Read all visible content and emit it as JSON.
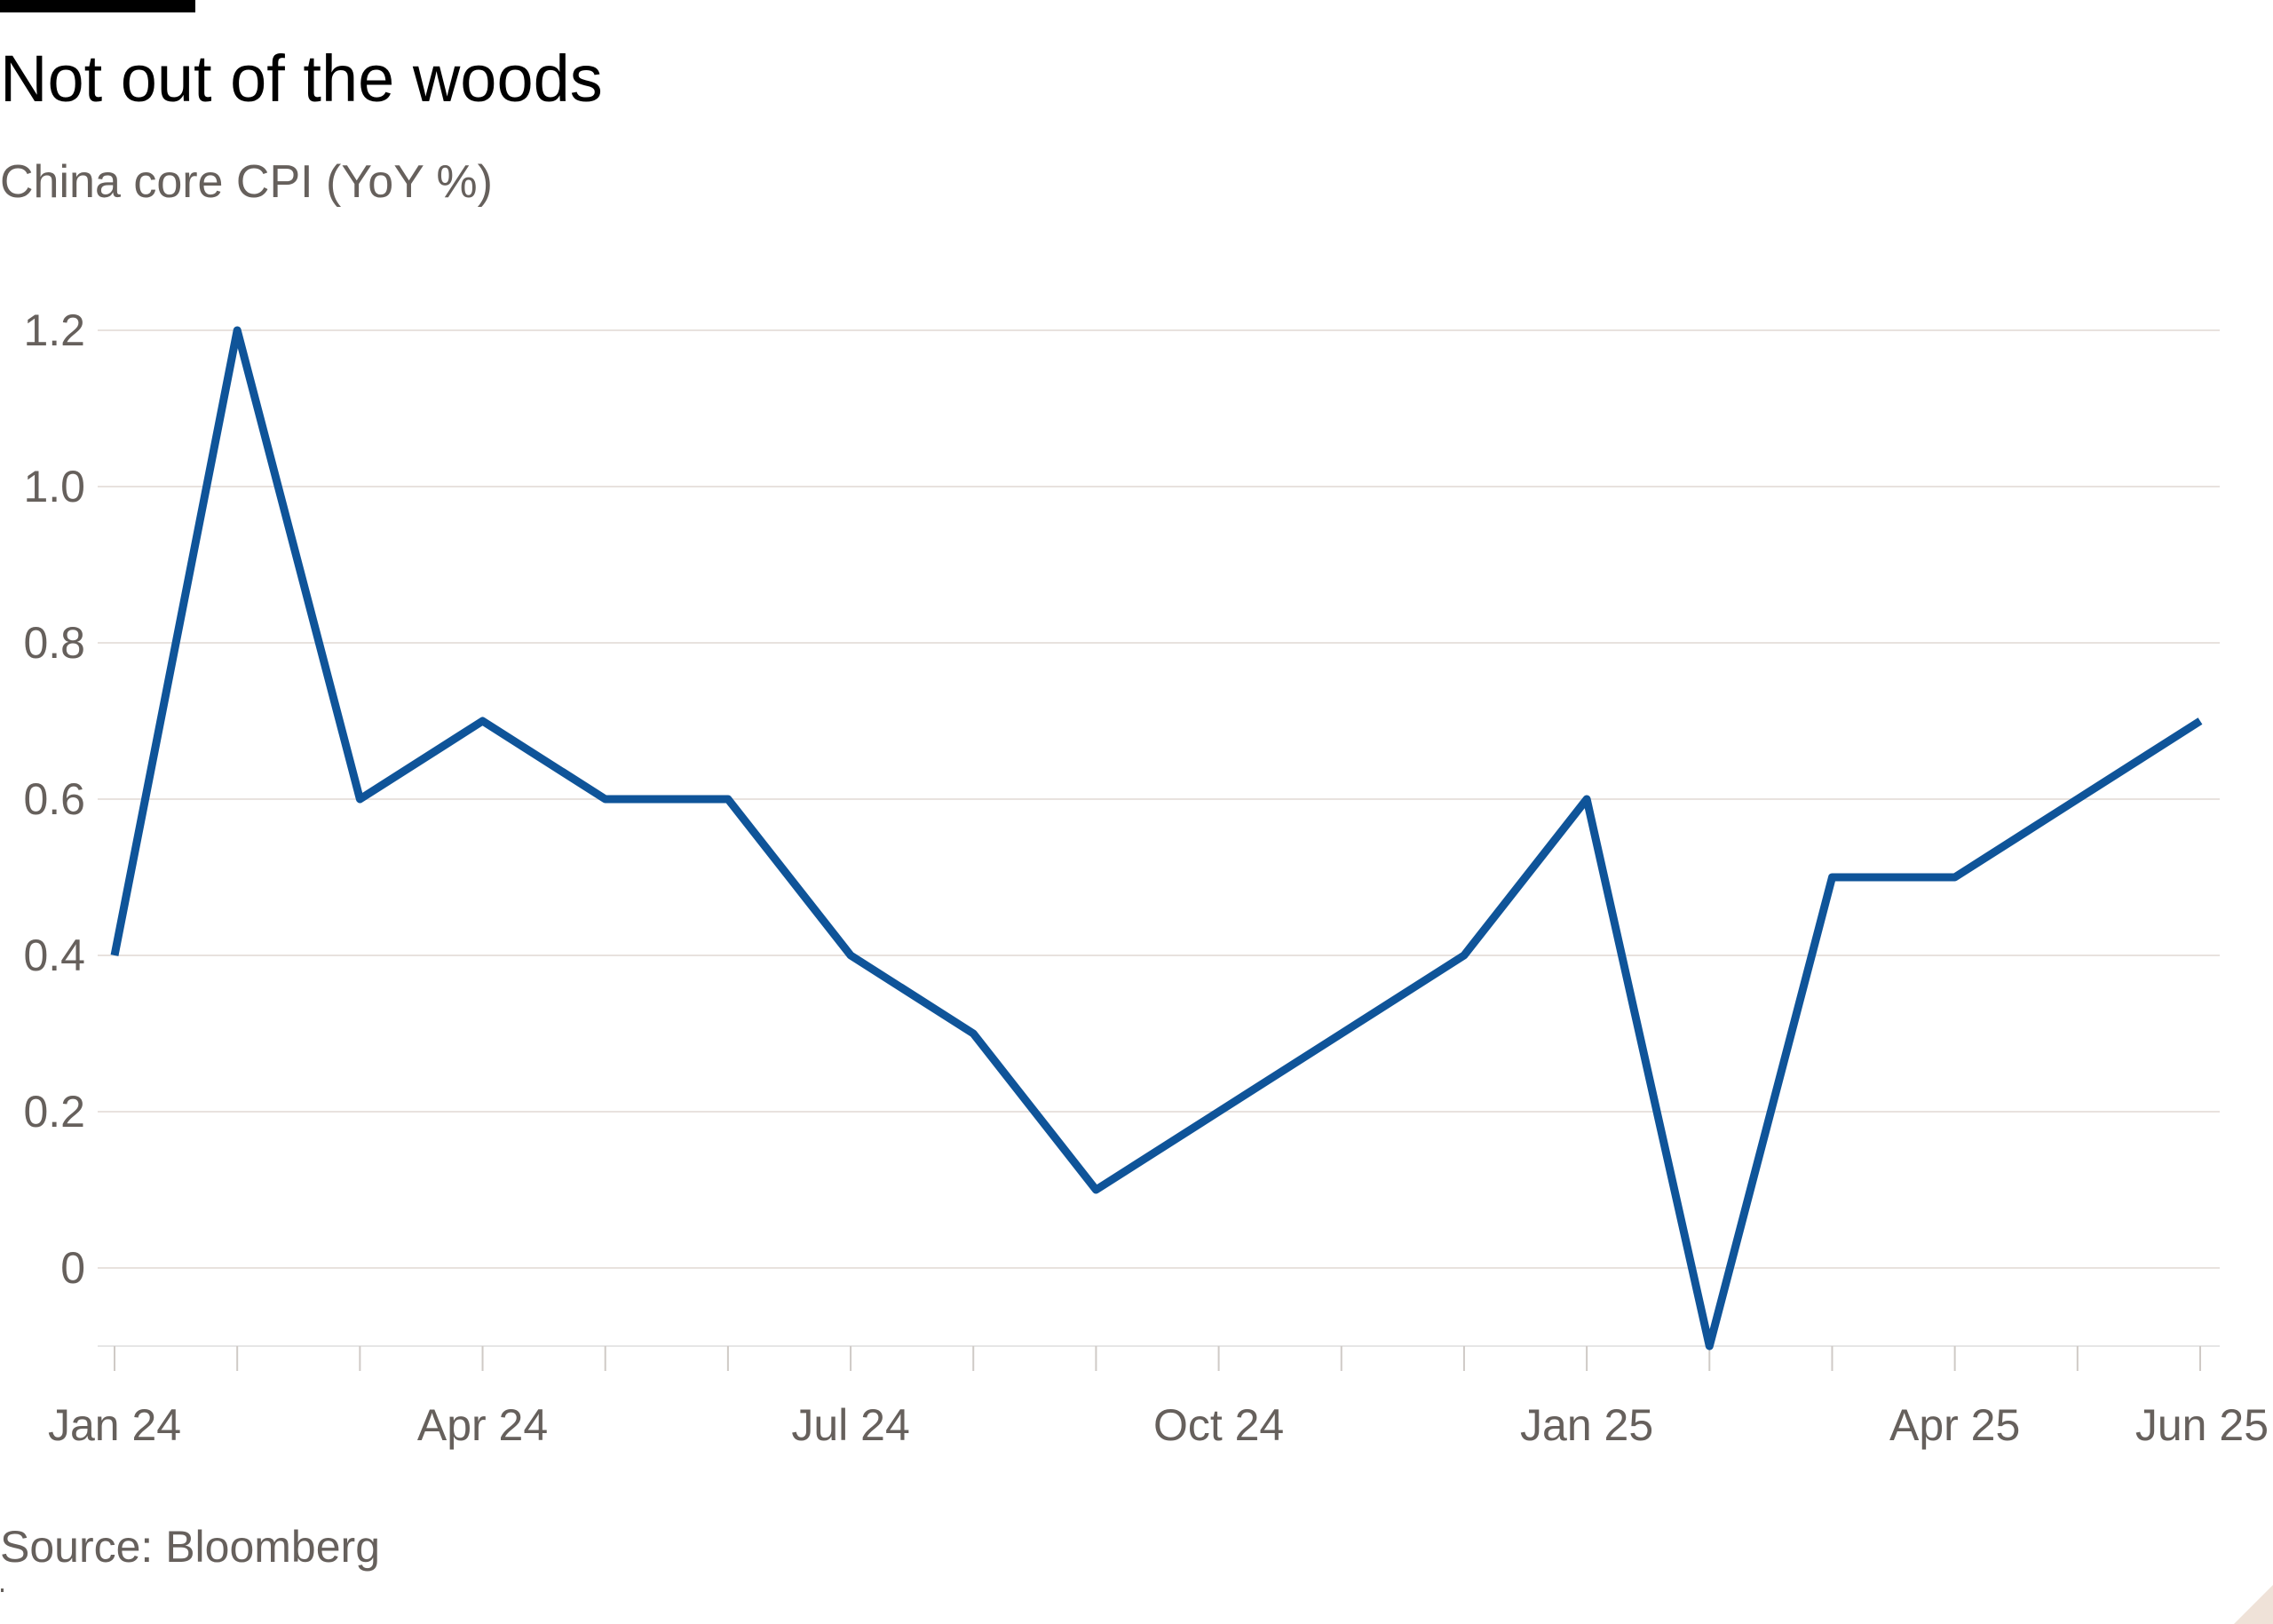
{
  "header": {
    "title": "Not out of the woods",
    "subtitle": "China core CPI (YoY %)"
  },
  "footer": {
    "source": "Source: Bloomberg"
  },
  "colors": {
    "line": "#0f5499",
    "grid": "#e8e2de",
    "text": "#66605c"
  },
  "chart_data": {
    "type": "line",
    "title": "Not out of the woods",
    "subtitle": "China core CPI (YoY %)",
    "xlabel": "",
    "ylabel": "",
    "ylim": [
      -0.1,
      1.2
    ],
    "y_ticks": [
      0,
      0.2,
      0.4,
      0.6,
      0.8,
      1.0,
      1.2
    ],
    "y_tick_labels": [
      "0",
      "0.2",
      "0.4",
      "0.6",
      "0.8",
      "1.0",
      "1.2"
    ],
    "x": [
      "Jan 24",
      "Feb 24",
      "Mar 24",
      "Apr 24",
      "May 24",
      "Jun 24",
      "Jul 24",
      "Aug 24",
      "Sep 24",
      "Oct 24",
      "Nov 24",
      "Dec 24",
      "Jan 25",
      "Feb 25",
      "Mar 25",
      "Apr 25",
      "May 25",
      "Jun 25"
    ],
    "x_tick_labels": [
      "Jan 24",
      "Apr 24",
      "Jul 24",
      "Oct 24",
      "Jan 25",
      "Apr 25",
      "Jun 25"
    ],
    "series": [
      {
        "name": "China core CPI (YoY %)",
        "values": [
          0.4,
          1.2,
          0.6,
          0.7,
          0.6,
          0.6,
          0.4,
          0.3,
          0.1,
          0.2,
          0.3,
          0.4,
          0.6,
          -0.1,
          0.5,
          0.5,
          0.6,
          0.7
        ]
      }
    ],
    "grid": true,
    "legend": "none",
    "source": "Source: Bloomberg"
  }
}
